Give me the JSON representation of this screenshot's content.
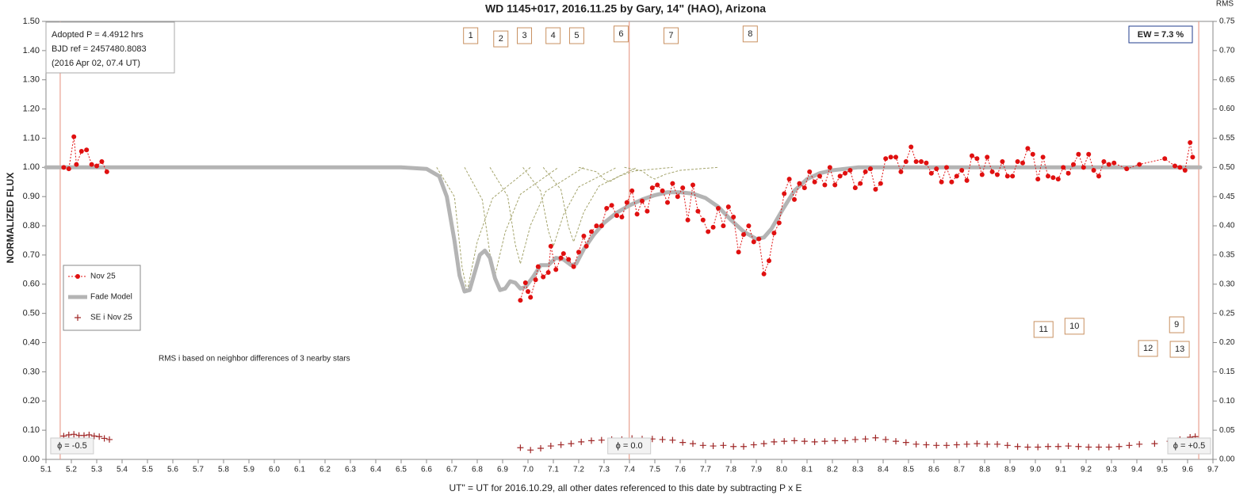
{
  "chart_data": {
    "type": "lightcurve",
    "title": "WD 1145+017, 2016.11.25 by Gary, 14\" (HAO), Arizona",
    "xlabel": "UT\" = UT for 2016.10.29, all other dates referenced to this date by subtracting P x E",
    "ylabel": "NORMALIZED FLUX",
    "y2label": "RMS",
    "xlim": [
      5.1,
      9.7
    ],
    "ylim": [
      0,
      1.5
    ],
    "y2lim": [
      0,
      0.75
    ],
    "xticks": [
      5.1,
      5.2,
      5.3,
      5.4,
      5.5,
      5.6,
      5.7,
      5.8,
      5.9,
      {
        "value": 6,
        "label": "6.0"
      },
      6.1,
      6.2,
      6.3,
      6.4,
      6.5,
      6.6,
      6.7,
      6.8,
      6.9,
      {
        "value": 7,
        "label": "7.0"
      },
      7.1,
      7.2,
      7.3,
      7.4,
      7.5,
      7.6,
      7.7,
      7.8,
      7.9,
      {
        "value": 8,
        "label": "8.0"
      },
      8.1,
      8.2,
      8.3,
      8.4,
      8.5,
      8.6,
      8.7,
      8.8,
      8.9,
      {
        "value": 9,
        "label": "9.0"
      },
      9.1,
      9.2,
      9.3,
      9.4,
      9.5,
      9.6,
      9.7
    ],
    "yticks": [
      {
        "value": 0,
        "label": "0.00"
      },
      {
        "value": 0.1,
        "label": "0.10"
      },
      {
        "value": 0.2,
        "label": "0.20"
      },
      {
        "value": 0.3,
        "label": "0.30"
      },
      {
        "value": 0.4,
        "label": "0.40"
      },
      {
        "value": 0.5,
        "label": "0.50"
      },
      {
        "value": 0.6,
        "label": "0.60"
      },
      {
        "value": 0.7,
        "label": "0.70"
      },
      {
        "value": 0.8,
        "label": "0.80"
      },
      {
        "value": 0.9,
        "label": "0.90"
      },
      {
        "value": 1,
        "label": "1.00"
      },
      {
        "value": 1.1,
        "label": "1.10"
      },
      {
        "value": 1.2,
        "label": "1.20"
      },
      {
        "value": 1.3,
        "label": "1.30"
      },
      {
        "value": 1.4,
        "label": "1.40"
      },
      {
        "value": 1.5,
        "label": "1.50"
      }
    ],
    "y2ticks": [
      {
        "value": 0,
        "label": "0.00"
      },
      0.05,
      {
        "value": 0.1,
        "label": "0.10"
      },
      0.15,
      {
        "value": 0.2,
        "label": "0.20"
      },
      0.25,
      {
        "value": 0.3,
        "label": "0.30"
      },
      0.35,
      {
        "value": 0.4,
        "label": "0.40"
      },
      0.45,
      {
        "value": 0.5,
        "label": "0.50"
      },
      0.55,
      {
        "value": 0.6,
        "label": "0.60"
      },
      0.65,
      {
        "value": 0.7,
        "label": "0.70"
      },
      0.75
    ],
    "grid": false,
    "legend": "center left",
    "series": [
      {
        "name": "Nov 25",
        "kind": "points",
        "color": "#e01010",
        "x": [
          5.17,
          5.19,
          5.21,
          5.22,
          5.24,
          5.26,
          5.28,
          5.3,
          5.32,
          5.34,
          null,
          6.97,
          6.99,
          7.0,
          7.01,
          7.03,
          7.04,
          7.06,
          7.08,
          7.09,
          7.11,
          7.13,
          7.14,
          7.16,
          7.18,
          7.2,
          7.22,
          7.23,
          7.25,
          7.27,
          7.29,
          7.31,
          7.33,
          7.35,
          7.37,
          7.39,
          7.41,
          7.43,
          7.45,
          7.47,
          7.49,
          7.51,
          7.53,
          7.55,
          7.57,
          7.59,
          7.61,
          7.63,
          7.65,
          7.67,
          7.69,
          7.71,
          7.73,
          7.75,
          7.77,
          7.79,
          7.81,
          7.83,
          7.85,
          7.87,
          7.89,
          7.91,
          7.93,
          7.95,
          7.97,
          7.99,
          8.01,
          8.03,
          8.05,
          8.07,
          8.09,
          8.11,
          8.13,
          8.15,
          8.17,
          8.19,
          8.21,
          8.23,
          8.25,
          8.27,
          8.29,
          8.31,
          8.33,
          8.35,
          8.37,
          8.39,
          8.41,
          8.43,
          8.45,
          8.47,
          8.49,
          8.51,
          8.53,
          8.55,
          8.57,
          8.59,
          8.61,
          8.63,
          8.65,
          8.67,
          8.69,
          8.71,
          8.73,
          8.75,
          8.77,
          8.79,
          8.81,
          8.83,
          8.85,
          8.87,
          8.89,
          8.91,
          8.93,
          8.95,
          8.97,
          8.99,
          9.01,
          9.03,
          9.05,
          9.07,
          9.09,
          9.11,
          9.13,
          9.15,
          9.17,
          9.19,
          9.21,
          9.23,
          9.25,
          9.27,
          9.29,
          9.31,
          9.36,
          9.41,
          9.51,
          9.55,
          9.57,
          9.59,
          9.61,
          9.62
        ],
        "values": [
          1.0,
          0.995,
          1.105,
          1.01,
          1.055,
          1.06,
          1.01,
          1.005,
          1.02,
          0.985,
          null,
          0.545,
          0.605,
          0.575,
          0.555,
          0.615,
          0.66,
          0.625,
          0.64,
          0.73,
          0.65,
          0.69,
          0.705,
          0.685,
          0.66,
          0.71,
          0.765,
          0.73,
          0.78,
          0.8,
          0.8,
          0.86,
          0.87,
          0.835,
          0.83,
          0.88,
          0.92,
          0.84,
          0.885,
          0.85,
          0.93,
          0.94,
          0.92,
          0.88,
          0.945,
          0.9,
          0.93,
          0.82,
          0.94,
          0.85,
          0.82,
          0.78,
          0.795,
          0.86,
          0.8,
          0.865,
          0.83,
          0.71,
          0.77,
          0.8,
          0.745,
          0.755,
          0.635,
          0.68,
          0.775,
          0.81,
          0.91,
          0.96,
          0.89,
          0.945,
          0.93,
          0.985,
          0.95,
          0.97,
          0.94,
          1.0,
          0.94,
          0.97,
          0.98,
          0.99,
          0.93,
          0.945,
          0.985,
          0.995,
          0.925,
          0.945,
          1.03,
          1.035,
          1.035,
          0.985,
          1.02,
          1.07,
          1.02,
          1.02,
          1.015,
          0.98,
          0.995,
          0.95,
          1.0,
          0.95,
          0.97,
          0.99,
          0.955,
          1.04,
          1.03,
          0.975,
          1.035,
          0.985,
          0.975,
          1.02,
          0.97,
          0.97,
          1.02,
          1.015,
          1.065,
          1.045,
          0.96,
          1.035,
          0.97,
          0.965,
          0.96,
          1.0,
          0.98,
          1.01,
          1.045,
          1.0,
          1.045,
          0.99,
          0.97,
          1.02,
          1.01,
          1.015,
          0.995,
          1.01,
          1.03,
          1.005,
          1.0,
          0.99,
          1.085,
          1.035
        ]
      },
      {
        "name": "Fade Model",
        "kind": "model",
        "color": "#b4b4b4",
        "x": [
          5.1,
          6.5,
          6.6,
          6.65,
          6.68,
          6.71,
          6.73,
          6.75,
          6.77,
          6.79,
          6.81,
          6.83,
          6.85,
          6.87,
          6.89,
          6.91,
          6.93,
          6.95,
          6.97,
          6.99,
          7.02,
          7.05,
          7.08,
          7.11,
          7.14,
          7.17,
          7.19,
          7.22,
          7.26,
          7.3,
          7.35,
          7.4,
          7.45,
          7.5,
          7.55,
          7.6,
          7.65,
          7.7,
          7.75,
          7.8,
          7.85,
          7.9,
          7.93,
          7.96,
          8.0,
          8.05,
          8.1,
          8.15,
          8.2,
          8.3,
          9.65
        ],
        "values": [
          1,
          1,
          0.995,
          0.97,
          0.9,
          0.75,
          0.63,
          0.575,
          0.58,
          0.64,
          0.7,
          0.715,
          0.69,
          0.62,
          0.58,
          0.585,
          0.61,
          0.605,
          0.585,
          0.59,
          0.625,
          0.665,
          0.665,
          0.69,
          0.685,
          0.665,
          0.67,
          0.72,
          0.77,
          0.81,
          0.845,
          0.87,
          0.89,
          0.905,
          0.915,
          0.915,
          0.91,
          0.895,
          0.865,
          0.82,
          0.78,
          0.755,
          0.76,
          0.79,
          0.85,
          0.92,
          0.96,
          0.98,
          0.99,
          1,
          1
        ]
      },
      {
        "kind": "component",
        "color": "#a4a46c",
        "x": [
          6.64,
          6.71,
          6.74,
          6.76,
          6.8,
          6.86,
          7.01
        ],
        "values": [
          1,
          0.9,
          0.66,
          0.575,
          0.745,
          0.894,
          1
        ]
      },
      {
        "kind": "component",
        "color": "#a4a46c",
        "x": [
          6.75,
          6.82,
          6.85,
          6.87,
          6.91,
          6.97,
          7.12
        ],
        "values": [
          1,
          0.889,
          0.704,
          0.63,
          0.778,
          0.908,
          1
        ]
      },
      {
        "kind": "component",
        "color": "#a4a46c",
        "x": [
          6.85,
          6.92,
          6.95,
          6.97,
          7.01,
          7.07,
          7.22
        ],
        "values": [
          1,
          0.901,
          0.736,
          0.67,
          0.802,
          0.918,
          1
        ]
      },
      {
        "kind": "component",
        "color": "#a4a46c",
        "x": [
          6.98,
          7.05,
          7.08,
          7.1,
          7.14,
          7.2,
          7.35
        ],
        "values": [
          1,
          0.919,
          0.784,
          0.73,
          0.838,
          0.933,
          1
        ]
      },
      {
        "kind": "component",
        "color": "#a4a46c",
        "x": [
          7.06,
          7.13,
          7.16,
          7.18,
          7.22,
          7.28,
          7.43
        ],
        "values": [
          1,
          0.924,
          0.796,
          0.745,
          0.847,
          0.936,
          1
        ]
      },
      {
        "kind": "component",
        "color": "#a4a46c",
        "x": [
          7.2,
          7.27,
          7.3,
          7.32,
          7.36,
          7.42,
          7.57
        ],
        "values": [
          1,
          0.985,
          0.96,
          0.95,
          0.97,
          0.988,
          1
        ]
      },
      {
        "kind": "component",
        "color": "#a4a46c",
        "x": [
          7.38,
          7.45,
          7.48,
          7.5,
          7.54,
          7.6,
          7.75
        ],
        "values": [
          1,
          0.988,
          0.968,
          0.96,
          0.976,
          0.99,
          1
        ]
      },
      {
        "name": "SE i Nov 25",
        "kind": "crosses",
        "axis": "y2",
        "color": "#a02828",
        "x": [
          5.17,
          5.19,
          5.21,
          5.23,
          5.25,
          5.27,
          5.29,
          5.31,
          5.33,
          5.35,
          6.97,
          7.01,
          7.05,
          7.09,
          7.13,
          7.17,
          7.21,
          7.25,
          7.29,
          7.33,
          7.37,
          7.41,
          7.45,
          7.49,
          7.53,
          7.57,
          7.61,
          7.65,
          7.69,
          7.73,
          7.77,
          7.81,
          7.85,
          7.89,
          7.93,
          7.97,
          8.01,
          8.05,
          8.09,
          8.13,
          8.17,
          8.21,
          8.25,
          8.29,
          8.33,
          8.37,
          8.41,
          8.45,
          8.49,
          8.53,
          8.57,
          8.61,
          8.65,
          8.69,
          8.73,
          8.77,
          8.81,
          8.85,
          8.89,
          8.93,
          8.97,
          9.01,
          9.05,
          9.09,
          9.13,
          9.17,
          9.21,
          9.25,
          9.29,
          9.33,
          9.37,
          9.41,
          9.47,
          9.53,
          9.57,
          9.61,
          9.63
        ],
        "values": [
          0.04,
          0.042,
          0.043,
          0.041,
          0.041,
          0.042,
          0.04,
          0.039,
          0.036,
          0.034,
          0.02,
          0.016,
          0.019,
          0.023,
          0.025,
          0.027,
          0.03,
          0.032,
          0.033,
          0.034,
          0.034,
          0.036,
          0.035,
          0.035,
          0.034,
          0.033,
          0.029,
          0.027,
          0.024,
          0.023,
          0.024,
          0.022,
          0.022,
          0.025,
          0.027,
          0.03,
          0.031,
          0.032,
          0.031,
          0.03,
          0.031,
          0.032,
          0.032,
          0.034,
          0.035,
          0.037,
          0.034,
          0.031,
          0.029,
          0.026,
          0.025,
          0.024,
          0.024,
          0.025,
          0.026,
          0.027,
          0.026,
          0.026,
          0.024,
          0.022,
          0.021,
          0.021,
          0.022,
          0.022,
          0.023,
          0.022,
          0.021,
          0.021,
          0.021,
          0.022,
          0.024,
          0.026,
          0.027,
          0.031,
          0.034,
          0.038,
          0.039
        ]
      }
    ],
    "phase_lines": [
      {
        "x": 5.156,
        "label": "ϕ = -0.5"
      },
      {
        "x": 7.399,
        "label": "ϕ = 0.0"
      },
      {
        "x": 9.644,
        "label": "ϕ = +0.5"
      }
    ],
    "annotations": [
      {
        "text": "1",
        "x": 6.774,
        "y": 1.451
      },
      {
        "text": "2",
        "x": 6.893,
        "y": 1.44
      },
      {
        "text": "3",
        "x": 6.986,
        "y": 1.451
      },
      {
        "text": "4",
        "x": 7.099,
        "y": 1.451
      },
      {
        "text": "5",
        "x": 7.192,
        "y": 1.451
      },
      {
        "text": "6",
        "x": 7.367,
        "y": 1.457
      },
      {
        "text": "7",
        "x": 7.564,
        "y": 1.451
      },
      {
        "text": "8",
        "x": 7.876,
        "y": 1.457
      },
      {
        "text": "9",
        "x": 9.557,
        "y": 0.461
      },
      {
        "text": "10",
        "x": 9.154,
        "y": 0.456
      },
      {
        "text": "11",
        "x": 9.032,
        "y": 0.445
      },
      {
        "text": "12",
        "x": 9.444,
        "y": 0.38
      },
      {
        "text": "13",
        "x": 9.569,
        "y": 0.377
      }
    ],
    "info_box": [
      "Adopted P = 4.4912 hrs",
      "BJD ref = 2457480.8083",
      "(2016 Apr 02, 07.4 UT)"
    ],
    "ew_label": "EW = 7.3 %",
    "note": "RMS i based on neighbor differences of 3 nearby stars"
  }
}
